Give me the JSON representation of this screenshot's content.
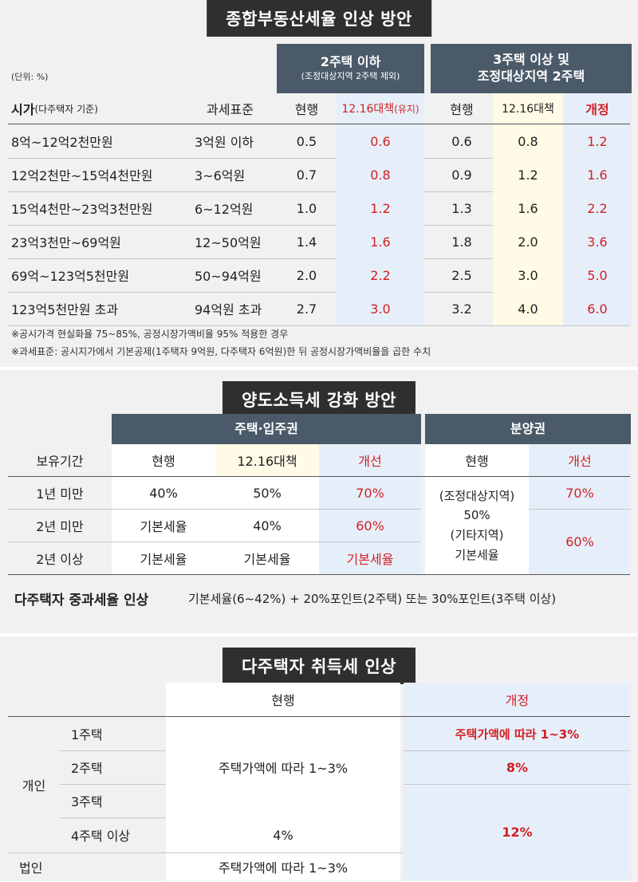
{
  "property_tax": {
    "title": "종합부동산세율 인상 방안",
    "unit": "(단위: %)",
    "group_a": {
      "title": "2주택 이하",
      "subtitle": "(조정대상지역 2주택 제외)"
    },
    "group_b": {
      "title": "3주택 이상 및",
      "subtitle": "조정대상지역 2주택"
    },
    "col_price_main": "시가",
    "col_price_sub": "(다주택자 기준)",
    "col_base": "과세표준",
    "col_a_current": "현행",
    "col_a_plan": "12.16대책",
    "col_a_plan_note": "(유지)",
    "col_b_current": "현행",
    "col_b_plan": "12.16대책",
    "col_b_revised": "개정",
    "rows": [
      {
        "price": "8억~12억2천만원",
        "base": "3억원 이하",
        "a_cur": "0.5",
        "a_plan": "0.6",
        "b_cur": "0.6",
        "b_plan": "0.8",
        "b_rev": "1.2"
      },
      {
        "price": "12억2천만~15억4천만원",
        "base": "3~6억원",
        "a_cur": "0.7",
        "a_plan": "0.8",
        "b_cur": "0.9",
        "b_plan": "1.2",
        "b_rev": "1.6"
      },
      {
        "price": "15억4천만~23억3천만원",
        "base": "6~12억원",
        "a_cur": "1.0",
        "a_plan": "1.2",
        "b_cur": "1.3",
        "b_plan": "1.6",
        "b_rev": "2.2"
      },
      {
        "price": "23억3천만~69억원",
        "base": "12~50억원",
        "a_cur": "1.4",
        "a_plan": "1.6",
        "b_cur": "1.8",
        "b_plan": "2.0",
        "b_rev": "3.6"
      },
      {
        "price": "69억~123억5천만원",
        "base": "50~94억원",
        "a_cur": "2.0",
        "a_plan": "2.2",
        "b_cur": "2.5",
        "b_plan": "3.0",
        "b_rev": "5.0"
      },
      {
        "price": "123억5천만원 초과",
        "base": "94억원 초과",
        "a_cur": "2.7",
        "a_plan": "3.0",
        "b_cur": "3.2",
        "b_plan": "4.0",
        "b_rev": "6.0"
      }
    ],
    "notes": [
      "※공시가격 현실화율 75~85%, 공정시장가액비율 95% 적용한 경우",
      "※과세표준: 공시지가에서 기본공제(1주택자 9억원, 다주택자 6억원)한 뒤 공정시장가액비율을 곱한 수치"
    ]
  },
  "transfer_tax": {
    "title": "양도소득세 강화 방안",
    "group_house": "주택·입주권",
    "group_presale": "분양권",
    "col_period": "보유기간",
    "col_current": "현행",
    "col_plan": "12.16대책",
    "col_improved": "개선",
    "col_presale_current": "현행",
    "col_presale_improved": "개선",
    "rows": [
      {
        "period": "1년 미만",
        "cur": "40%",
        "plan": "50%",
        "improved": "70%"
      },
      {
        "period": "2년 미만",
        "cur": "기본세율",
        "plan": "40%",
        "improved": "60%"
      },
      {
        "period": "2년 이상",
        "cur": "기본세율",
        "plan": "기본세율",
        "improved": "기본세율"
      }
    ],
    "presale_current_lines": [
      "(조정대상지역)",
      "50%",
      "(기타지역)",
      "기본세율"
    ],
    "presale_improved": [
      "70%",
      "60%"
    ],
    "surcharge_label": "다주택자 중과세율 인상",
    "surcharge_text": "기본세율(6~42%) + 20%포인트(2주택) 또는 30%포인트(3주택 이상)"
  },
  "acquisition_tax": {
    "title": "다주택자 취득세 인상",
    "col_current": "현행",
    "col_revised": "개정",
    "individual": "개인",
    "corporate": "법인",
    "items": [
      "1주택",
      "2주택",
      "3주택",
      "4주택 이상"
    ],
    "current_individual": "주택가액에 따라 1~3%",
    "current_4plus": "4%",
    "current_corporate": "주택가액에 따라 1~3%",
    "revised_1": "주택가액에 따라 1~3%",
    "revised_2": "8%",
    "revised_3plus": "12%"
  }
}
